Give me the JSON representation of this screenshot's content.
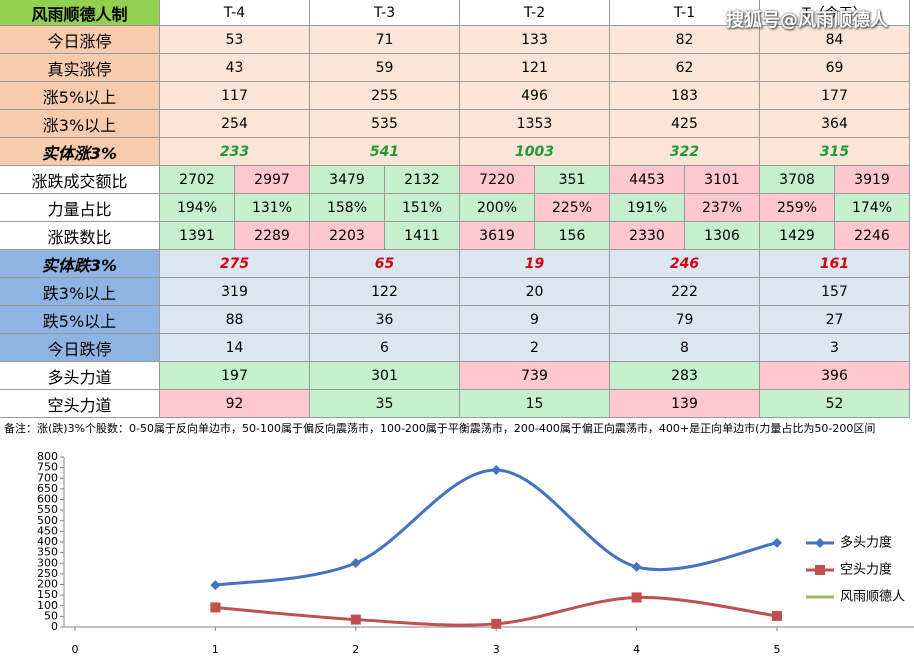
{
  "watermark": "搜狐号@风雨顺德人",
  "table": {
    "header": [
      "风雨顺德人制",
      "T-4",
      "T-3",
      "T-2",
      "T-1",
      "T（今天）"
    ],
    "rows": [
      {
        "label": "今日涨停",
        "cells": [
          "53",
          "71",
          "133",
          "82",
          "84"
        ],
        "label_fill": "#f8cbad",
        "fill": "#fce4d6",
        "text_color": "#000000"
      },
      {
        "label": "真实涨停",
        "cells": [
          "43",
          "59",
          "121",
          "62",
          "69"
        ],
        "label_fill": "#f8cbad",
        "fill": "#fce4d6",
        "text_color": "#000000"
      },
      {
        "label": "涨5%以上",
        "cells": [
          "117",
          "255",
          "496",
          "183",
          "177"
        ],
        "label_fill": "#f8cbad",
        "fill": "#fce4d6",
        "text_color": "#000000"
      },
      {
        "label": "涨3%以上",
        "cells": [
          "254",
          "535",
          "1353",
          "425",
          "364"
        ],
        "label_fill": "#f8cbad",
        "fill": "#fce4d6",
        "text_color": "#000000"
      },
      {
        "label": "实体涨3%",
        "cells": [
          "233",
          "541",
          "1003",
          "322",
          "315"
        ],
        "label_fill": "#f8cbad",
        "fill": "#fce4d6",
        "text_color": "#1e9a3c",
        "emphasis": true
      },
      {
        "label": "涨跌成交额比",
        "cells": [
          [
            "2702",
            "2997"
          ],
          [
            "3479",
            "2132"
          ],
          [
            "7220",
            "351"
          ],
          [
            "4453",
            "3101"
          ],
          [
            "3708",
            "3919"
          ]
        ],
        "label_fill": "#ffffff",
        "fill": [
          [
            "#c6efce",
            "#ffc7ce"
          ],
          [
            "#c6efce",
            "#c6efce"
          ],
          [
            "#ffc7ce",
            "#c6efce"
          ],
          [
            "#ffc7ce",
            "#ffc7ce"
          ],
          [
            "#c6efce",
            "#ffc7ce"
          ]
        ],
        "text_color": "#000000"
      },
      {
        "label": "力量占比",
        "cells": [
          [
            "194%",
            "131%"
          ],
          [
            "158%",
            "151%"
          ],
          [
            "200%",
            "225%"
          ],
          [
            "191%",
            "237%"
          ],
          [
            "259%",
            "174%"
          ]
        ],
        "label_fill": "#ffffff",
        "fill": [
          [
            "#c6efce",
            "#c6efce"
          ],
          [
            "#c6efce",
            "#c6efce"
          ],
          [
            "#c6efce",
            "#ffc7ce"
          ],
          [
            "#c6efce",
            "#ffc7ce"
          ],
          [
            "#ffc7ce",
            "#c6efce"
          ]
        ],
        "text_color": "#000000"
      },
      {
        "label": "涨跌数比",
        "cells": [
          [
            "1391",
            "2289"
          ],
          [
            "2203",
            "1411"
          ],
          [
            "3619",
            "156"
          ],
          [
            "2330",
            "1306"
          ],
          [
            "1429",
            "2246"
          ]
        ],
        "label_fill": "#ffffff",
        "fill": [
          [
            "#c6efce",
            "#ffc7ce"
          ],
          [
            "#ffc7ce",
            "#c6efce"
          ],
          [
            "#ffc7ce",
            "#c6efce"
          ],
          [
            "#ffc7ce",
            "#c6efce"
          ],
          [
            "#c6efce",
            "#ffc7ce"
          ]
        ],
        "text_color": "#000000"
      },
      {
        "label": "实体跌3%",
        "cells": [
          "275",
          "65",
          "19",
          "246",
          "161"
        ],
        "label_fill": "#8db4e2",
        "fill": "#dce6f1",
        "text_color": "#d4000f",
        "emphasis": true
      },
      {
        "label": "跌3%以上",
        "cells": [
          "319",
          "122",
          "20",
          "222",
          "157"
        ],
        "label_fill": "#8db4e2",
        "fill": "#dce6f1",
        "text_color": "#000000"
      },
      {
        "label": "跌5%以上",
        "cells": [
          "88",
          "36",
          "9",
          "79",
          "27"
        ],
        "label_fill": "#8db4e2",
        "fill": "#dce6f1",
        "text_color": "#000000"
      },
      {
        "label": "今日跌停",
        "cells": [
          "14",
          "6",
          "2",
          "8",
          "3"
        ],
        "label_fill": "#8db4e2",
        "fill": "#dce6f1",
        "text_color": "#000000"
      },
      {
        "label": "多头力道",
        "cells": [
          "197",
          "301",
          "739",
          "283",
          "396"
        ],
        "label_fill": "#ffffff",
        "fill": [
          "#c6efce",
          "#c6efce",
          "#ffc7ce",
          "#c6efce",
          "#ffc7ce"
        ],
        "text_color": "#000000"
      },
      {
        "label": "空头力道",
        "cells": [
          "92",
          "35",
          "15",
          "139",
          "52"
        ],
        "label_fill": "#ffffff",
        "fill": [
          "#ffc7ce",
          "#c6efce",
          "#c6efce",
          "#ffc7ce",
          "#c6efce"
        ],
        "text_color": "#000000"
      }
    ]
  },
  "note": "备注：涨(跌)3%个股数：0-50属于反向单边市，50-100属于偏反向震荡市，100-200属于平衡震荡市，200-400属于偏正向震荡市，400+是正向单边市(力量占比为50-200区间",
  "chart_data": {
    "type": "line",
    "x": [
      1,
      2,
      3,
      4,
      5
    ],
    "xlim": [
      0,
      5
    ],
    "xticks": [
      0,
      1,
      2,
      3,
      4,
      5
    ],
    "ylim": [
      0,
      800
    ],
    "yticks": [
      0,
      50,
      100,
      150,
      200,
      250,
      300,
      350,
      400,
      450,
      500,
      550,
      600,
      650,
      700,
      750,
      800
    ],
    "grid": false,
    "smooth": true,
    "legend": "right",
    "series": [
      {
        "name": "多头力度",
        "color": "#4472c4",
        "marker": "diamond",
        "values": [
          197,
          301,
          739,
          283,
          396
        ]
      },
      {
        "name": "空头力度",
        "color": "#c0504d",
        "marker": "square",
        "values": [
          92,
          35,
          15,
          139,
          52
        ]
      },
      {
        "name": "风雨顺德人",
        "color": "#9bbb59",
        "marker": "none",
        "values": [
          null,
          null,
          null,
          null,
          null
        ]
      }
    ]
  }
}
